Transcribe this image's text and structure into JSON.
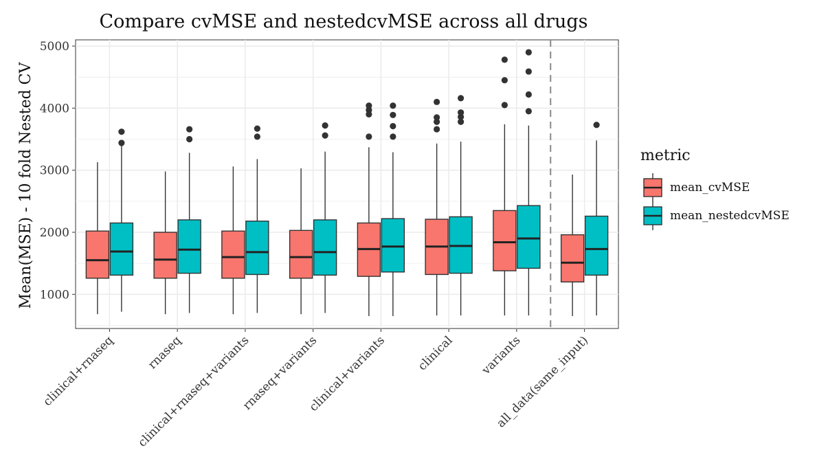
{
  "chart_data": {
    "type": "boxplot",
    "title": "Compare cvMSE and nestedcvMSE across all drugs",
    "xlabel": "",
    "ylabel": "Mean(MSE) - 10 fold Nested CV",
    "ylim": [
      450,
      5100
    ],
    "yticks": [
      1000,
      2000,
      3000,
      4000,
      5000
    ],
    "grid": true,
    "legend": {
      "title": "metric",
      "position": "right"
    },
    "colors": {
      "mean_cvMSE": "#F8766D",
      "mean_nestedcvMSE": "#00BFC4"
    },
    "categories": [
      "clinical+rnaseq",
      "rnaseq",
      "clinical+rnaseq+variants",
      "rnaseq+variants",
      "clinical+variants",
      "clinical",
      "variants",
      "all_data(same_input)"
    ],
    "separator_after": "variants",
    "series": [
      {
        "name": "mean_cvMSE",
        "boxes": [
          {
            "min": 680,
            "q1": 1260,
            "median": 1550,
            "q3": 2020,
            "max": 3130,
            "outliers": []
          },
          {
            "min": 680,
            "q1": 1260,
            "median": 1560,
            "q3": 2000,
            "max": 2980,
            "outliers": []
          },
          {
            "min": 680,
            "q1": 1260,
            "median": 1600,
            "q3": 2020,
            "max": 3060,
            "outliers": []
          },
          {
            "min": 680,
            "q1": 1260,
            "median": 1600,
            "q3": 2030,
            "max": 3030,
            "outliers": []
          },
          {
            "min": 650,
            "q1": 1290,
            "median": 1730,
            "q3": 2150,
            "max": 3370,
            "outliers": [
              3540,
              3900,
              3970,
              4040
            ]
          },
          {
            "min": 660,
            "q1": 1320,
            "median": 1770,
            "q3": 2210,
            "max": 3430,
            "outliers": [
              3660,
              3780,
              3850,
              4100
            ]
          },
          {
            "min": 660,
            "q1": 1380,
            "median": 1840,
            "q3": 2350,
            "max": 3740,
            "outliers": [
              4050,
              4450,
              4780
            ]
          },
          {
            "min": 650,
            "q1": 1200,
            "median": 1510,
            "q3": 1960,
            "max": 2930,
            "outliers": []
          }
        ]
      },
      {
        "name": "mean_nestedcvMSE",
        "boxes": [
          {
            "min": 720,
            "q1": 1310,
            "median": 1690,
            "q3": 2150,
            "max": 3420,
            "outliers": [
              3440,
              3620
            ]
          },
          {
            "min": 700,
            "q1": 1340,
            "median": 1720,
            "q3": 2200,
            "max": 3280,
            "outliers": [
              3500,
              3660
            ]
          },
          {
            "min": 700,
            "q1": 1320,
            "median": 1680,
            "q3": 2180,
            "max": 3180,
            "outliers": [
              3540,
              3670
            ]
          },
          {
            "min": 700,
            "q1": 1310,
            "median": 1680,
            "q3": 2200,
            "max": 3300,
            "outliers": [
              3560,
              3720
            ]
          },
          {
            "min": 650,
            "q1": 1360,
            "median": 1770,
            "q3": 2220,
            "max": 3290,
            "outliers": [
              3540,
              3710,
              3890,
              4040
            ]
          },
          {
            "min": 660,
            "q1": 1340,
            "median": 1780,
            "q3": 2250,
            "max": 3460,
            "outliers": [
              3780,
              3860,
              3930,
              4160
            ]
          },
          {
            "min": 660,
            "q1": 1420,
            "median": 1900,
            "q3": 2430,
            "max": 3720,
            "outliers": [
              3950,
              4220,
              4590,
              4900
            ]
          },
          {
            "min": 660,
            "q1": 1310,
            "median": 1730,
            "q3": 2260,
            "max": 3480,
            "outliers": [
              3730
            ]
          }
        ]
      }
    ]
  }
}
